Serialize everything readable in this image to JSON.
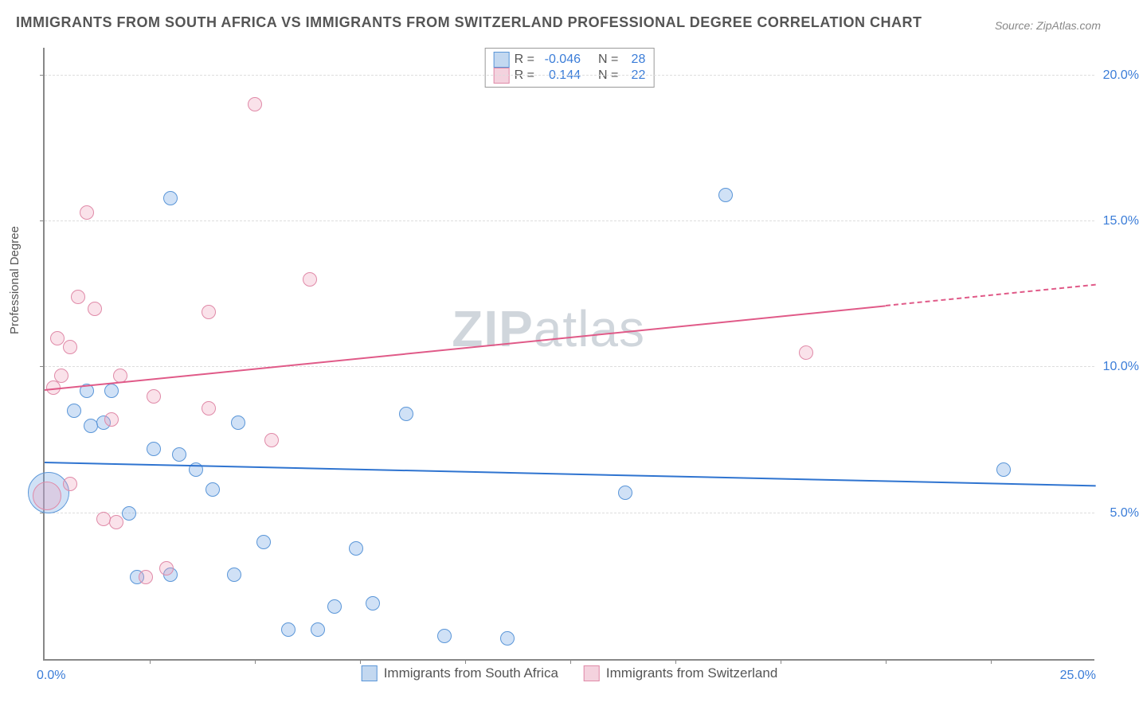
{
  "title": "IMMIGRANTS FROM SOUTH AFRICA VS IMMIGRANTS FROM SWITZERLAND PROFESSIONAL DEGREE CORRELATION CHART",
  "source": "Source: ZipAtlas.com",
  "y_axis_label": "Professional Degree",
  "watermark_a": "ZIP",
  "watermark_b": "atlas",
  "chart": {
    "xlim": [
      0,
      25
    ],
    "ylim": [
      0,
      21
    ],
    "x_ticks": [
      0,
      25
    ],
    "x_tick_labels": [
      "0.0%",
      "25.0%"
    ],
    "x_minor_ticks": [
      2.5,
      5,
      7.5,
      10,
      12.5,
      15,
      17.5,
      20,
      22.5
    ],
    "y_gridlines": [
      5,
      10,
      15,
      20
    ],
    "y_tick_labels": [
      "5.0%",
      "10.0%",
      "15.0%",
      "20.0%"
    ],
    "background": "#ffffff",
    "grid_color": "#dddddd",
    "axis_color": "#888888"
  },
  "series": [
    {
      "name": "Immigrants from South Africa",
      "color_fill": "rgba(120,170,230,0.35)",
      "color_stroke": "#5a96d8",
      "swatch_fill": "#c3d8f0",
      "swatch_stroke": "#5a96d8",
      "R": "-0.046",
      "N": "28",
      "trend": {
        "x1": 0,
        "y1": 6.7,
        "x2": 25,
        "y2": 5.9,
        "color": "#2f74d0",
        "dash_from_x": null
      },
      "points": [
        {
          "x": 0.1,
          "y": 5.7,
          "r": 26
        },
        {
          "x": 3.0,
          "y": 15.8,
          "r": 9
        },
        {
          "x": 16.2,
          "y": 15.9,
          "r": 9
        },
        {
          "x": 1.0,
          "y": 9.2,
          "r": 9
        },
        {
          "x": 1.6,
          "y": 9.2,
          "r": 9
        },
        {
          "x": 0.7,
          "y": 8.5,
          "r": 9
        },
        {
          "x": 1.4,
          "y": 8.1,
          "r": 9
        },
        {
          "x": 1.1,
          "y": 8.0,
          "r": 9
        },
        {
          "x": 4.6,
          "y": 8.1,
          "r": 9
        },
        {
          "x": 8.6,
          "y": 8.4,
          "r": 9
        },
        {
          "x": 2.6,
          "y": 7.2,
          "r": 9
        },
        {
          "x": 3.2,
          "y": 7.0,
          "r": 9
        },
        {
          "x": 3.6,
          "y": 6.5,
          "r": 9
        },
        {
          "x": 22.8,
          "y": 6.5,
          "r": 9
        },
        {
          "x": 4.0,
          "y": 5.8,
          "r": 9
        },
        {
          "x": 13.8,
          "y": 5.7,
          "r": 9
        },
        {
          "x": 2.0,
          "y": 5.0,
          "r": 9
        },
        {
          "x": 5.2,
          "y": 4.0,
          "r": 9
        },
        {
          "x": 7.4,
          "y": 3.8,
          "r": 9
        },
        {
          "x": 3.0,
          "y": 2.9,
          "r": 9
        },
        {
          "x": 4.5,
          "y": 2.9,
          "r": 9
        },
        {
          "x": 2.2,
          "y": 2.8,
          "r": 9
        },
        {
          "x": 6.9,
          "y": 1.8,
          "r": 9
        },
        {
          "x": 7.8,
          "y": 1.9,
          "r": 9
        },
        {
          "x": 5.8,
          "y": 1.0,
          "r": 9
        },
        {
          "x": 6.5,
          "y": 1.0,
          "r": 9
        },
        {
          "x": 9.5,
          "y": 0.8,
          "r": 9
        },
        {
          "x": 11.0,
          "y": 0.7,
          "r": 9
        }
      ]
    },
    {
      "name": "Immigrants from Switzerland",
      "color_fill": "rgba(240,160,185,0.3)",
      "color_stroke": "#e08aa8",
      "swatch_fill": "#f4d2de",
      "swatch_stroke": "#e08aa8",
      "R": "0.144",
      "N": "22",
      "trend": {
        "x1": 0,
        "y1": 9.2,
        "x2": 25,
        "y2": 12.8,
        "color": "#e05a88",
        "dash_from_x": 20
      },
      "points": [
        {
          "x": 5.0,
          "y": 19.0,
          "r": 9
        },
        {
          "x": 1.0,
          "y": 15.3,
          "r": 9
        },
        {
          "x": 6.3,
          "y": 13.0,
          "r": 9
        },
        {
          "x": 0.8,
          "y": 12.4,
          "r": 9
        },
        {
          "x": 1.2,
          "y": 12.0,
          "r": 9
        },
        {
          "x": 3.9,
          "y": 11.9,
          "r": 9
        },
        {
          "x": 0.3,
          "y": 11.0,
          "r": 9
        },
        {
          "x": 0.6,
          "y": 10.7,
          "r": 9
        },
        {
          "x": 18.1,
          "y": 10.5,
          "r": 9
        },
        {
          "x": 0.4,
          "y": 9.7,
          "r": 9
        },
        {
          "x": 1.8,
          "y": 9.7,
          "r": 9
        },
        {
          "x": 0.2,
          "y": 9.3,
          "r": 9
        },
        {
          "x": 2.6,
          "y": 9.0,
          "r": 9
        },
        {
          "x": 3.9,
          "y": 8.6,
          "r": 9
        },
        {
          "x": 1.6,
          "y": 8.2,
          "r": 9
        },
        {
          "x": 5.4,
          "y": 7.5,
          "r": 9
        },
        {
          "x": 0.6,
          "y": 6.0,
          "r": 9
        },
        {
          "x": 1.4,
          "y": 4.8,
          "r": 9
        },
        {
          "x": 1.7,
          "y": 4.7,
          "r": 9
        },
        {
          "x": 2.9,
          "y": 3.1,
          "r": 9
        },
        {
          "x": 2.4,
          "y": 2.8,
          "r": 9
        },
        {
          "x": 0.05,
          "y": 5.6,
          "r": 18
        }
      ]
    }
  ],
  "legend_top": {
    "R_label": "R =",
    "N_label": "N ="
  }
}
